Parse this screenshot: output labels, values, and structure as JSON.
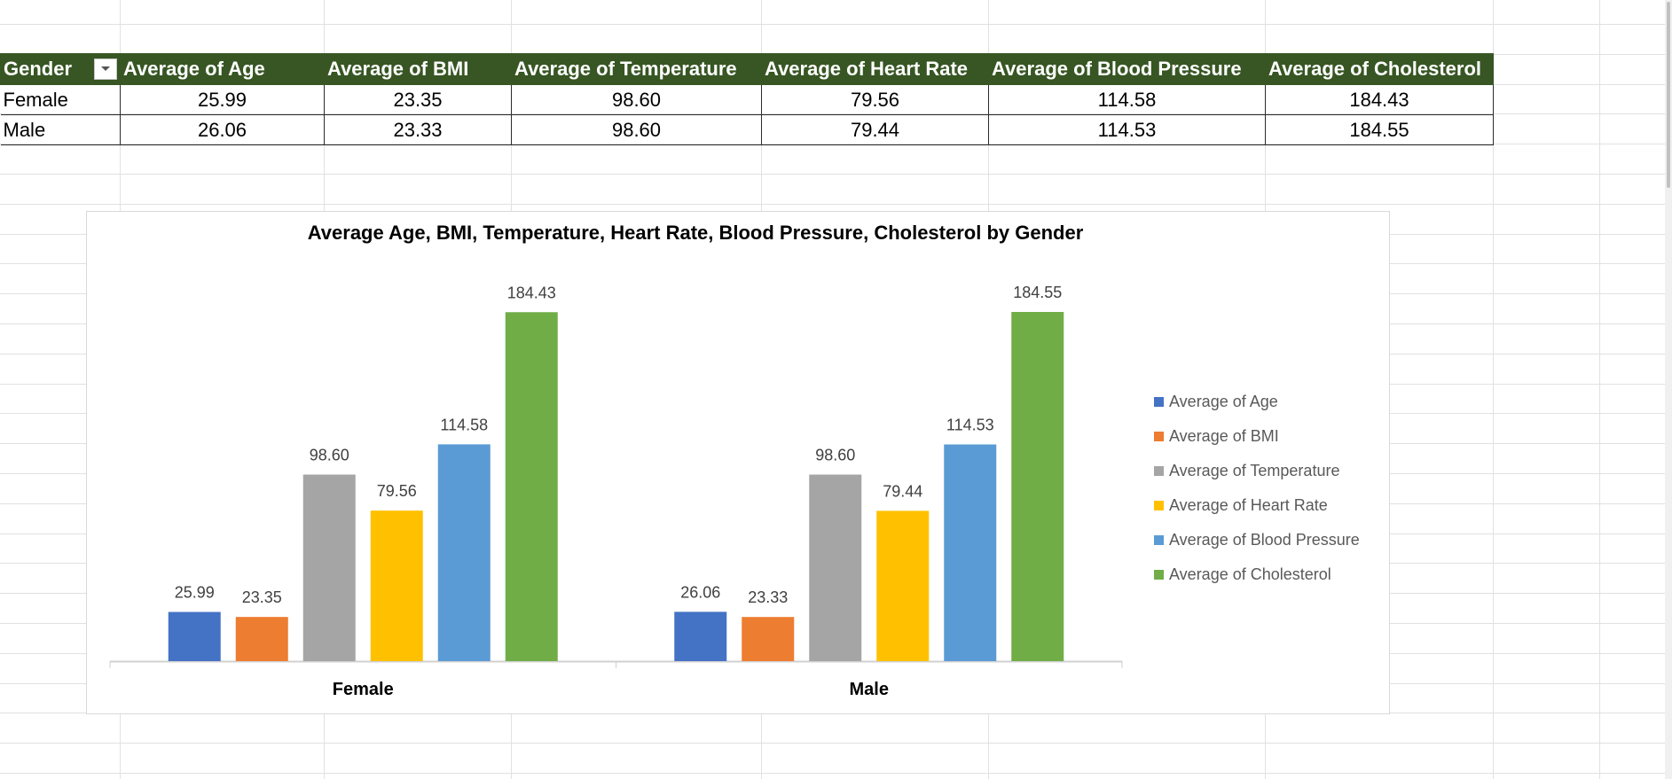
{
  "pivot": {
    "headers": [
      "Gender",
      "Average of Age",
      "Average of BMI",
      "Average of Temperature",
      "Average of Heart Rate",
      "Average of Blood Pressure",
      "Average of Cholesterol"
    ],
    "rows": [
      {
        "label": "Female",
        "cells": [
          "25.99",
          "23.35",
          "98.60",
          "79.56",
          "114.58",
          "184.43"
        ]
      },
      {
        "label": "Male",
        "cells": [
          "26.06",
          "23.33",
          "98.60",
          "79.44",
          "114.53",
          "184.55"
        ]
      }
    ],
    "filter_icon": "dropdown-arrow-icon"
  },
  "chart_data": {
    "type": "bar",
    "title": "Average Age, BMI, Temperature, Heart Rate, Blood Pressure, Cholesterol by Gender",
    "categories": [
      "Female",
      "Male"
    ],
    "series": [
      {
        "name": "Average of Age",
        "color": "#4472C4",
        "values": [
          25.99,
          26.06
        ],
        "labels": [
          "25.99",
          "26.06"
        ]
      },
      {
        "name": "Average of BMI",
        "color": "#ED7D31",
        "values": [
          23.35,
          23.33
        ],
        "labels": [
          "23.35",
          "23.33"
        ]
      },
      {
        "name": "Average of Temperature",
        "color": "#A5A5A5",
        "values": [
          98.6,
          98.6
        ],
        "labels": [
          "98.60",
          "98.60"
        ]
      },
      {
        "name": "Average of Heart Rate",
        "color": "#FFC000",
        "values": [
          79.56,
          79.44
        ],
        "labels": [
          "79.56",
          "79.44"
        ]
      },
      {
        "name": "Average of Blood Pressure",
        "color": "#5B9BD5",
        "values": [
          114.58,
          114.53
        ],
        "labels": [
          "114.58",
          "114.53"
        ]
      },
      {
        "name": "Average of Cholesterol",
        "color": "#70AD47",
        "values": [
          184.43,
          184.55
        ],
        "labels": [
          "184.43",
          "184.55"
        ]
      }
    ],
    "ylim": [
      0,
      184.55
    ],
    "grid": false,
    "legend": "right"
  }
}
